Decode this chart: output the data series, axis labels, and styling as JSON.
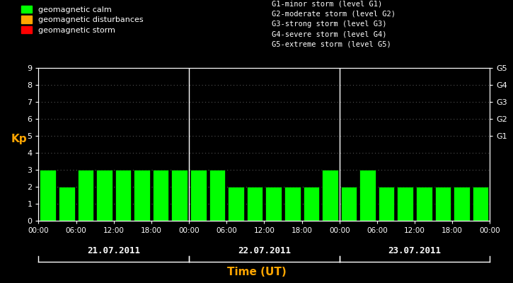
{
  "background_color": "#000000",
  "bar_color": "#00ff00",
  "axis_color": "#ffffff",
  "title_color": "#ffa500",
  "kp_label_color": "#ffa500",
  "legend_colors": [
    "#00ff00",
    "#ffa500",
    "#ff0000"
  ],
  "legend_labels": [
    "geomagnetic calm",
    "geomagnetic disturbances",
    "geomagnetic storm"
  ],
  "storm_levels": [
    "G1-minor storm (level G1)",
    "G2-moderate storm (level G2)",
    "G3-strong storm (level G3)",
    "G4-severe storm (level G4)",
    "G5-extreme storm (level G5)"
  ],
  "right_axis_labels": [
    "G1",
    "G2",
    "G3",
    "G4",
    "G5"
  ],
  "right_axis_positions": [
    5,
    6,
    7,
    8,
    9
  ],
  "xlabel": "Time (UT)",
  "ylabel": "Kp",
  "ylim": [
    0,
    9
  ],
  "yticks": [
    0,
    1,
    2,
    3,
    4,
    5,
    6,
    7,
    8,
    9
  ],
  "days": [
    "21.07.2011",
    "22.07.2011",
    "23.07.2011"
  ],
  "kp_values": [
    3,
    2,
    3,
    3,
    3,
    3,
    3,
    3,
    3,
    3,
    2,
    2,
    2,
    2,
    2,
    3,
    2,
    3,
    2,
    2,
    2,
    2,
    2,
    2
  ],
  "n_bars_per_day": 8,
  "bar_width": 0.85,
  "tick_labels_per_day": [
    "00:00",
    "06:00",
    "12:00",
    "18:00"
  ],
  "grid_dot_color": "#555555"
}
